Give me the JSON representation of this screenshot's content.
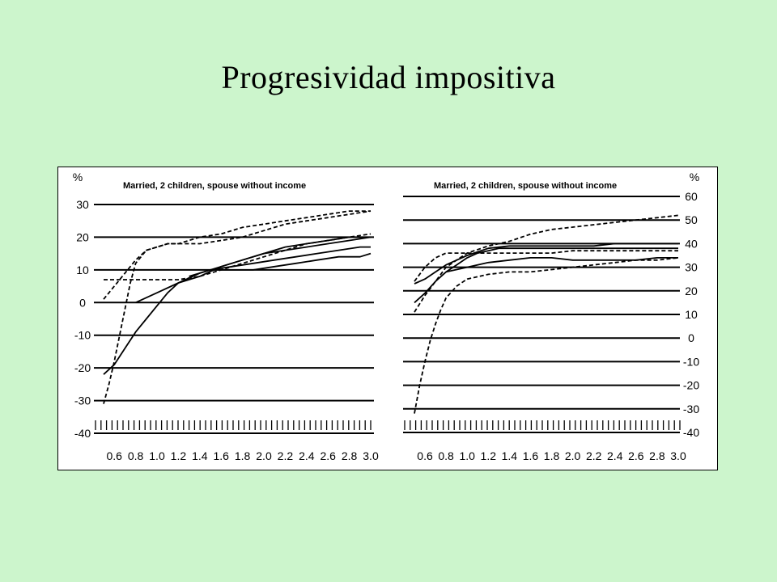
{
  "slide": {
    "title": "Progresividad impositiva"
  },
  "chart_data": [
    {
      "type": "line",
      "title": "Married, 2 children, spouse without income",
      "y_unit": "%",
      "ylim": [
        -40,
        30
      ],
      "y_ticks": [
        30,
        20,
        10,
        0,
        -10,
        -20,
        -30,
        -40
      ],
      "y_axis_side": "left",
      "xlim": [
        0.5,
        3.0
      ],
      "x_ticks": [
        0.6,
        0.8,
        1.0,
        1.2,
        1.4,
        1.6,
        1.8,
        2.0,
        2.2,
        2.4,
        2.6,
        2.8,
        3.0
      ],
      "x_tick_labels": [
        "0.6",
        "0.8",
        "1.0",
        "1.2",
        "1.4",
        "1.6",
        "1.8",
        "2.0",
        "2.2",
        "2.4",
        "2.6",
        "2.8",
        "3.0"
      ],
      "grid": true,
      "series": [
        {
          "style": "solid",
          "x": [
            0.5,
            0.6,
            0.7,
            0.8,
            0.9,
            1.0,
            1.1,
            1.2,
            1.4,
            1.6,
            1.8,
            2.0,
            2.2,
            2.4,
            2.6,
            2.8,
            3.0
          ],
          "y": [
            -22,
            -19,
            -14,
            -9,
            -5,
            -1,
            3,
            6,
            9,
            11,
            13,
            15,
            16,
            17,
            18,
            19,
            20
          ]
        },
        {
          "style": "solid",
          "x": [
            0.8,
            1.0,
            1.2,
            1.4,
            1.6,
            1.8,
            2.0,
            2.2,
            2.4,
            2.6,
            2.8,
            3.0
          ],
          "y": [
            0,
            3,
            6,
            8,
            11,
            13,
            15,
            17,
            18,
            19,
            20,
            20
          ]
        },
        {
          "style": "solid",
          "x": [
            1.3,
            1.5,
            1.7,
            1.9,
            2.1,
            2.3,
            2.5,
            2.7,
            2.9,
            3.0
          ],
          "y": [
            8,
            10,
            11,
            12,
            13,
            14,
            15,
            16,
            17,
            17
          ]
        },
        {
          "style": "solid",
          "x": [
            1.5,
            1.7,
            1.9,
            2.1,
            2.3,
            2.5,
            2.7,
            2.9,
            3.0
          ],
          "y": [
            10,
            10,
            10,
            11,
            12,
            13,
            14,
            14,
            15
          ]
        },
        {
          "style": "dashed",
          "x": [
            0.5,
            0.6,
            0.7,
            0.8,
            0.9,
            1.0,
            1.1,
            1.2,
            1.4,
            1.6,
            1.8,
            2.0,
            2.2,
            2.4,
            2.6,
            2.8,
            3.0
          ],
          "y": [
            1,
            5,
            9,
            13,
            16,
            17,
            18,
            18,
            20,
            21,
            23,
            24,
            25,
            26,
            27,
            28,
            28
          ]
        },
        {
          "style": "dashed",
          "x": [
            0.5,
            0.55,
            0.6,
            0.65,
            0.7,
            0.75,
            0.8,
            0.9,
            1.0,
            1.1,
            1.2,
            1.4,
            1.6,
            1.8,
            2.0,
            2.2,
            2.4,
            2.6,
            2.8,
            3.0
          ],
          "y": [
            -31,
            -25,
            -18,
            -10,
            -2,
            6,
            12,
            16,
            17,
            18,
            18,
            18,
            19,
            20,
            22,
            24,
            25,
            26,
            27,
            28
          ]
        },
        {
          "style": "dashed",
          "x": [
            0.5,
            0.8,
            1.0,
            1.2,
            1.4,
            1.6,
            1.8,
            2.0,
            2.2,
            2.4,
            2.6,
            2.8,
            3.0
          ],
          "y": [
            7,
            7,
            7,
            7,
            8,
            10,
            12,
            14,
            16,
            18,
            19,
            20,
            21
          ]
        }
      ]
    },
    {
      "type": "line",
      "title": "Married, 2 children, spouse without income",
      "y_unit": "%",
      "ylim": [
        -40,
        60
      ],
      "y_ticks": [
        60,
        50,
        40,
        30,
        20,
        10,
        0,
        -10,
        -20,
        -30,
        -40
      ],
      "y_axis_side": "right",
      "xlim": [
        0.5,
        3.0
      ],
      "x_ticks": [
        0.6,
        0.8,
        1.0,
        1.2,
        1.4,
        1.6,
        1.8,
        2.0,
        2.2,
        2.4,
        2.6,
        2.8,
        3.0
      ],
      "x_tick_labels": [
        "0.6",
        "0.8",
        "1.0",
        "1.2",
        "1.4",
        "1.6",
        "1.8",
        "2.0",
        "2.2",
        "2.4",
        "2.6",
        "2.8",
        "3.0"
      ],
      "grid": true,
      "series": [
        {
          "style": "solid",
          "x": [
            0.5,
            0.6,
            0.7,
            0.8,
            0.9,
            1.0,
            1.1,
            1.2,
            1.3,
            1.4,
            1.6,
            1.8,
            2.0,
            2.2,
            2.4,
            2.6,
            2.8,
            3.0
          ],
          "y": [
            15,
            19,
            24,
            28,
            31,
            34,
            36,
            37,
            38,
            38,
            38,
            38,
            38,
            38,
            38,
            38,
            38,
            38
          ]
        },
        {
          "style": "solid",
          "x": [
            0.5,
            0.6,
            0.7,
            0.8,
            0.9,
            1.0,
            1.2,
            1.4,
            1.6,
            1.8,
            2.0,
            2.2,
            2.4,
            2.6,
            2.8,
            3.0
          ],
          "y": [
            23,
            25,
            28,
            31,
            33,
            35,
            38,
            39,
            39,
            39,
            39,
            39,
            40,
            40,
            40,
            40
          ]
        },
        {
          "style": "solid",
          "x": [
            0.8,
            1.0,
            1.2,
            1.4,
            1.6,
            1.8,
            2.0,
            2.2,
            2.4,
            2.6,
            2.8,
            3.0
          ],
          "y": [
            28,
            30,
            32,
            33,
            34,
            34,
            33,
            33,
            33,
            33,
            34,
            34
          ]
        },
        {
          "style": "dashed",
          "x": [
            0.5,
            0.6,
            0.7,
            0.8,
            0.9,
            1.0,
            1.2,
            1.4,
            1.6,
            1.8,
            2.0,
            2.2,
            2.4,
            2.6,
            2.8,
            3.0
          ],
          "y": [
            11,
            18,
            24,
            30,
            33,
            36,
            39,
            41,
            44,
            46,
            47,
            48,
            49,
            50,
            51,
            52
          ]
        },
        {
          "style": "dashed",
          "x": [
            0.5,
            0.6,
            0.7,
            0.8,
            0.9,
            1.0,
            1.2,
            1.4,
            1.6,
            1.8,
            2.0,
            2.2,
            2.4,
            2.6,
            2.8,
            3.0
          ],
          "y": [
            24,
            30,
            34,
            36,
            36,
            36,
            36,
            36,
            36,
            36,
            37,
            37,
            37,
            37,
            37,
            37
          ]
        },
        {
          "style": "dashed",
          "x": [
            0.5,
            0.55,
            0.6,
            0.65,
            0.7,
            0.75,
            0.8,
            0.9,
            1.0,
            1.1,
            1.2,
            1.4,
            1.6,
            1.8,
            2.0,
            2.2,
            2.4,
            2.6,
            2.8,
            3.0
          ],
          "y": [
            -32,
            -20,
            -10,
            -1,
            6,
            12,
            17,
            22,
            25,
            26,
            27,
            28,
            28,
            29,
            30,
            31,
            32,
            33,
            33,
            34
          ]
        }
      ]
    }
  ]
}
